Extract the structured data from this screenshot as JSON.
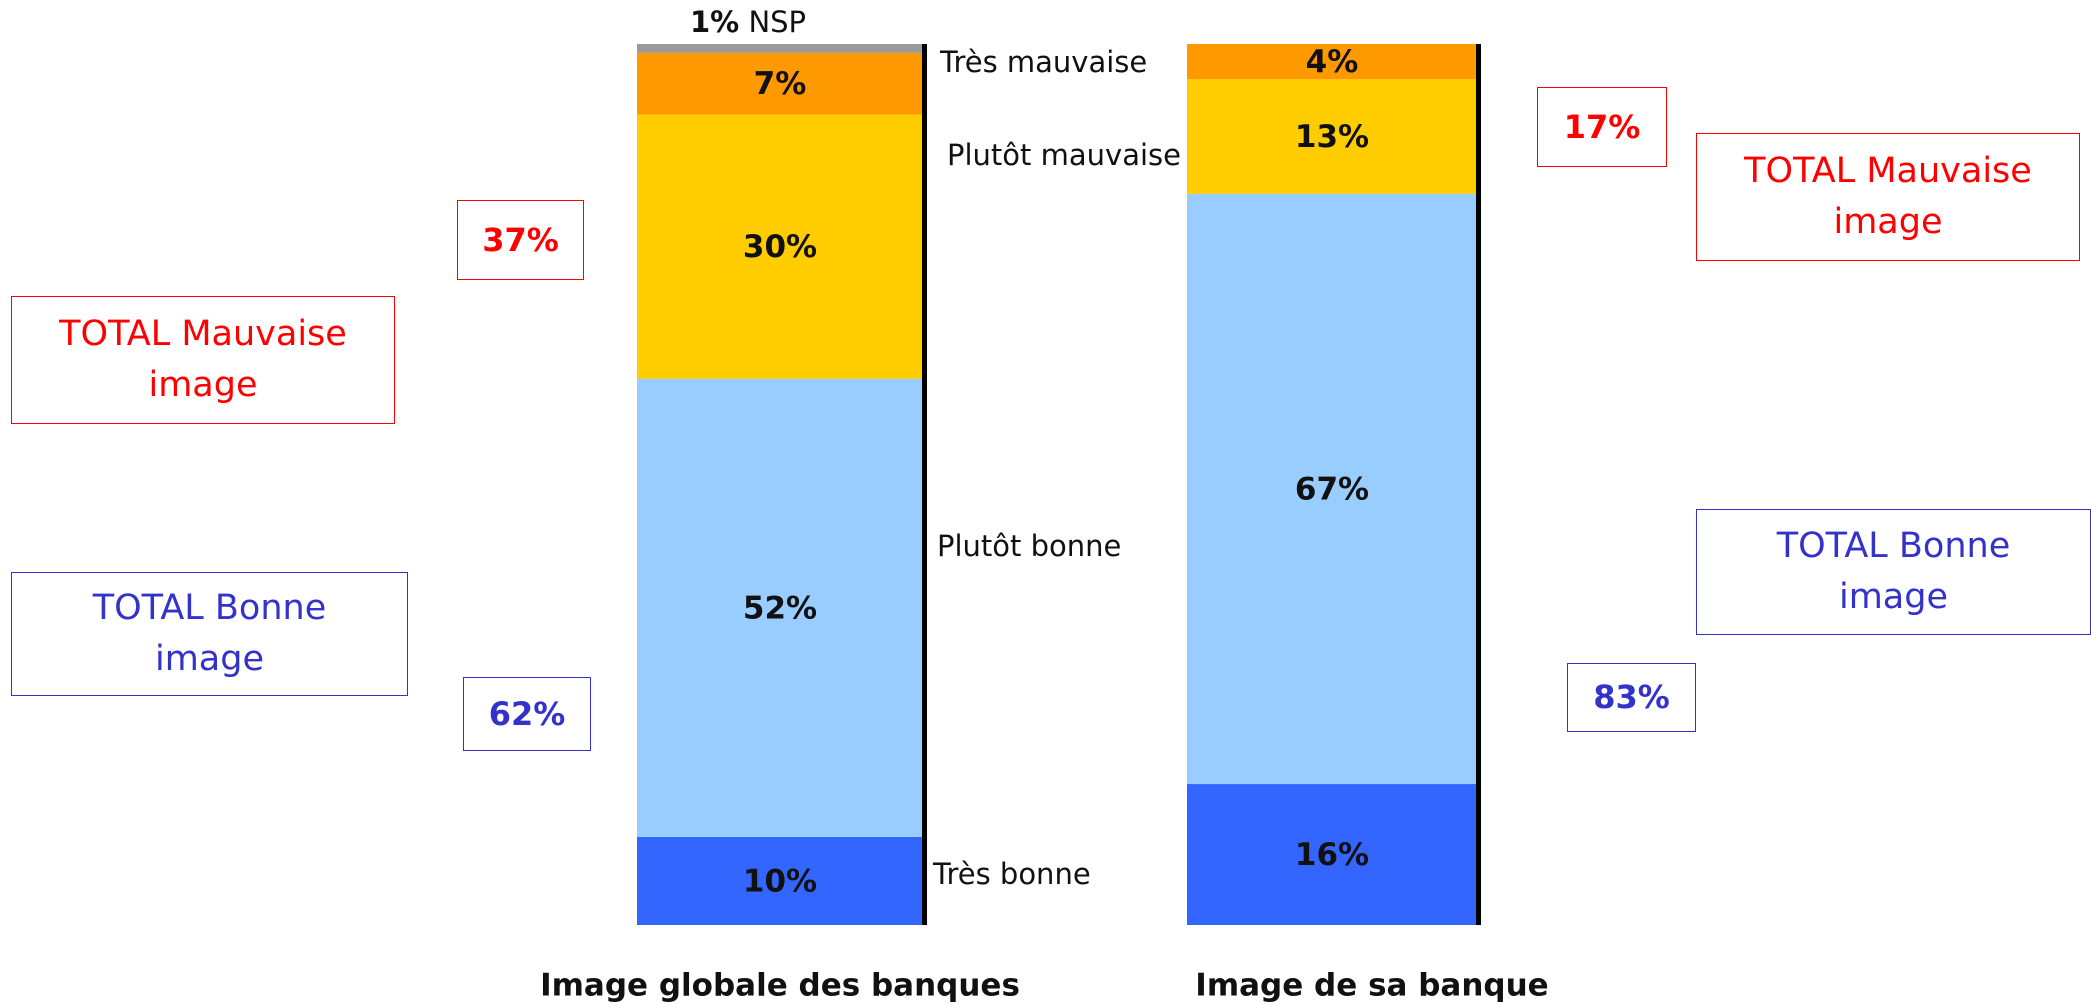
{
  "chart_data": {
    "type": "stacked_bar",
    "categories": [
      "Image globale des banques",
      "Image de sa banque"
    ],
    "ylim": [
      0,
      100
    ],
    "series": [
      {
        "name": "Très bonne",
        "color": "#3366ff",
        "values": [
          10,
          16
        ],
        "value_labels": [
          "10%",
          "16%"
        ]
      },
      {
        "name": "Plutôt bonne",
        "color": "#99ccff",
        "values": [
          52,
          67
        ],
        "value_labels": [
          "52%",
          "67%"
        ]
      },
      {
        "name": "Plutôt mauvaise",
        "color": "#ffcc00",
        "values": [
          30,
          13
        ],
        "value_labels": [
          "30%",
          "13%"
        ]
      },
      {
        "name": "Très mauvaise",
        "color": "#ff9900",
        "values": [
          7,
          4
        ],
        "value_labels": [
          "7%",
          "4%"
        ]
      },
      {
        "name": "NSP",
        "color": "#999999",
        "values": [
          1,
          null
        ],
        "value_labels": [
          "1%",
          null
        ]
      }
    ],
    "annotations": [
      {
        "text": [
          "TOTAL Mauvaise",
          "image"
        ],
        "value": 37,
        "value_label": "37%",
        "color": "#ff0000"
      },
      {
        "text": [
          "TOTAL Bonne",
          "image"
        ],
        "value": 62,
        "value_label": "62%",
        "color": "#3333cc"
      },
      {
        "text": [
          "TOTAL Mauvaise",
          "image"
        ],
        "value": 17,
        "value_label": "17%",
        "color": "#ff0000"
      },
      {
        "text": [
          "TOTAL Bonne",
          "image"
        ],
        "value": 83,
        "value_label": "83%",
        "color": "#3333cc"
      }
    ]
  }
}
